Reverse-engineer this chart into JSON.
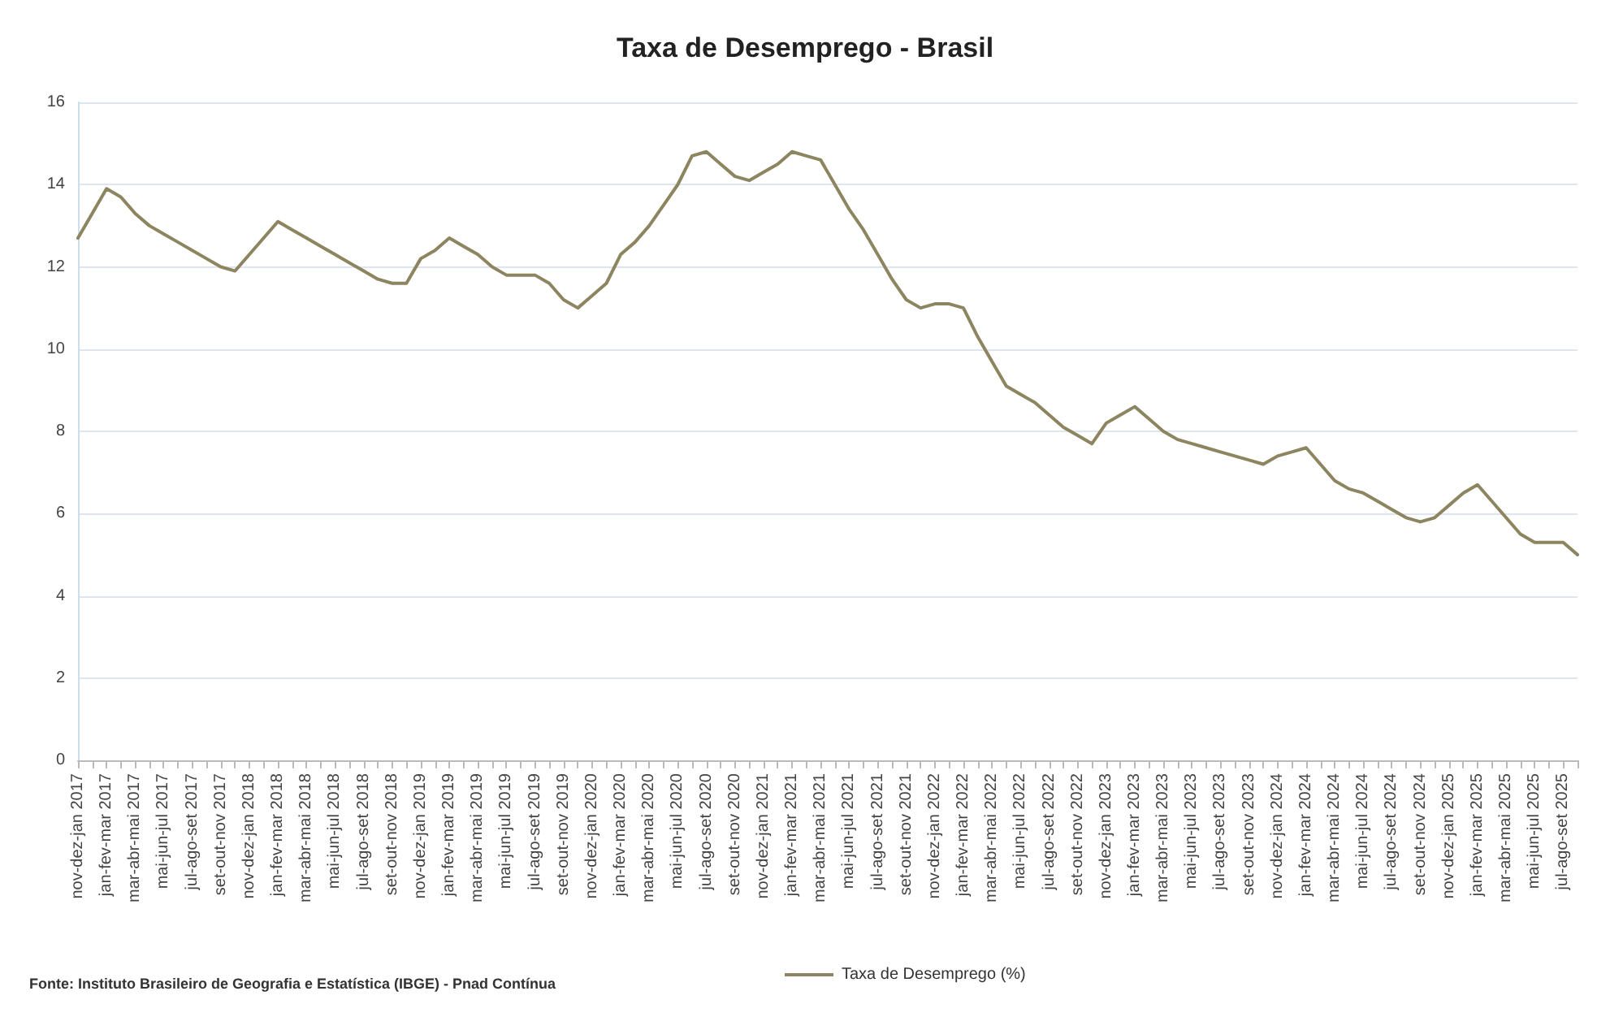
{
  "chart_data": {
    "type": "line",
    "title": "Taxa de Desemprego - Brasil",
    "categories": [
      "nov-dez-jan 2017",
      null,
      "jan-fev-mar 2017",
      null,
      "mar-abr-mai 2017",
      null,
      "mai-jun-jul 2017",
      null,
      "jul-ago-set 2017",
      null,
      "set-out-nov 2017",
      null,
      "nov-dez-jan 2018",
      null,
      "jan-fev-mar 2018",
      null,
      "mar-abr-mai 2018",
      null,
      "mai-jun-jul 2018",
      null,
      "jul-ago-set 2018",
      null,
      "set-out-nov 2018",
      null,
      "nov-dez-jan 2019",
      null,
      "jan-fev-mar 2019",
      null,
      "mar-abr-mai 2019",
      null,
      "mai-jun-jul 2019",
      null,
      "jul-ago-set 2019",
      null,
      "set-out-nov 2019",
      null,
      "nov-dez-jan 2020",
      null,
      "jan-fev-mar 2020",
      null,
      "mar-abr-mai 2020",
      null,
      "mai-jun-jul 2020",
      null,
      "jul-ago-set 2020",
      null,
      "set-out-nov 2020",
      null,
      "nov-dez-jan 2021",
      null,
      "jan-fev-mar 2021",
      null,
      "mar-abr-mai 2021",
      null,
      "mai-jun-jul 2021",
      null,
      "jul-ago-set 2021",
      null,
      "set-out-nov 2021",
      null,
      "nov-dez-jan 2022",
      null,
      "jan-fev-mar 2022",
      null,
      "mar-abr-mai 2022",
      null,
      "mai-jun-jul 2022",
      null,
      "jul-ago-set 2022",
      null,
      "set-out-nov 2022",
      null,
      "nov-dez-jan 2023",
      null,
      "jan-fev-mar 2023",
      null,
      "mar-abr-mai 2023",
      null,
      "mai-jun-jul 2023",
      null,
      "jul-ago-set 2023",
      null,
      "set-out-nov 2023",
      null,
      "nov-dez-jan 2024",
      null,
      "jan-fev-mar 2024",
      null,
      "mar-abr-mai 2024",
      null,
      "mai-jun-jul 2024",
      null,
      "jul-ago-set 2024",
      null,
      "set-out-nov 2024",
      null,
      "nov-dez-jan 2025",
      null,
      "jan-fev-mar 2025",
      null,
      "mar-abr-mai 2025",
      null,
      "mai-jun-jul 2025",
      null,
      "jul-ago-set 2025",
      null
    ],
    "series": [
      {
        "name": "Taxa de Desemprego (%)",
        "color": "#8c8560",
        "values": [
          12.7,
          13.3,
          13.9,
          13.7,
          13.3,
          13.0,
          12.8,
          12.6,
          12.4,
          12.2,
          12.0,
          11.9,
          12.3,
          12.7,
          13.1,
          12.9,
          12.7,
          12.5,
          12.3,
          12.1,
          11.9,
          11.7,
          11.6,
          11.6,
          12.2,
          12.4,
          12.7,
          12.5,
          12.3,
          12.0,
          11.8,
          11.8,
          11.8,
          11.6,
          11.2,
          11.0,
          11.3,
          11.6,
          12.3,
          12.6,
          13.0,
          13.5,
          14.0,
          14.7,
          14.8,
          14.5,
          14.2,
          14.1,
          14.3,
          14.5,
          14.8,
          14.7,
          14.6,
          14.0,
          13.4,
          12.9,
          12.3,
          11.7,
          11.2,
          11.0,
          11.1,
          11.1,
          11.0,
          10.3,
          9.7,
          9.1,
          8.9,
          8.7,
          8.4,
          8.1,
          7.9,
          7.7,
          8.2,
          8.4,
          8.6,
          8.3,
          8.0,
          7.8,
          7.7,
          7.6,
          7.5,
          7.4,
          7.3,
          7.2,
          7.4,
          7.5,
          7.6,
          7.2,
          6.8,
          6.6,
          6.5,
          6.3,
          6.1,
          5.9,
          5.8,
          5.9,
          6.2,
          6.5,
          6.7,
          6.3,
          5.9,
          5.5,
          5.3,
          5.3,
          5.3,
          5.0
        ]
      }
    ],
    "ylim": [
      0,
      16
    ],
    "yticks": [
      0,
      2,
      4,
      6,
      8,
      10,
      12,
      14,
      16
    ],
    "grid": "y",
    "legend": "bottom",
    "marker": "none",
    "line_style": "solid",
    "annotations": [
      "Fonte: Instituto Brasileiro de Geografia e Estatística (IBGE) - Pnad Contínua"
    ]
  }
}
